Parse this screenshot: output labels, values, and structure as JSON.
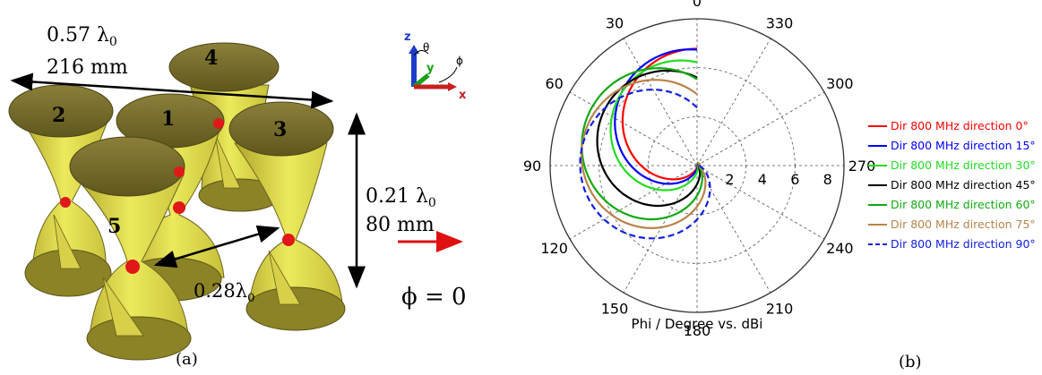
{
  "panel_a": {
    "dim_width_a": "0.57 λ",
    "dim_width_sub": "0",
    "dim_width_b": "216 mm",
    "dim_height_a": "0.21 λ",
    "dim_height_sub": "0",
    "dim_height_b": "80 mm",
    "dim_spacing": "0.28λ",
    "dim_spacing_sub": "0",
    "phi_label": "ϕ = 0",
    "caption": "(a)",
    "element_numbers": [
      "1",
      "2",
      "3",
      "4",
      "5"
    ],
    "axes": {
      "z": "z",
      "theta": "θ",
      "y": "y",
      "phi": "ϕ",
      "x": "x"
    }
  },
  "panel_b": {
    "caption": "(b)",
    "xlabel": "Phi / Degree vs. dBi",
    "angle_labels": [
      "0",
      "30",
      "60",
      "90",
      "120",
      "150",
      "180",
      "210",
      "240",
      "270",
      "300",
      "330"
    ],
    "radial_labels": [
      "2",
      "4",
      "6",
      "8"
    ]
  },
  "chart_data": {
    "type": "polar",
    "title": "",
    "xlabel": "Phi / Degree vs. dBi",
    "angular_axis": {
      "unit": "degree",
      "ticks": [
        0,
        30,
        60,
        90,
        120,
        150,
        180,
        210,
        240,
        270,
        300,
        330
      ],
      "direction": "counterclockwise",
      "zero": "top"
    },
    "radial_axis": {
      "unit": "dBi",
      "ticks": [
        2,
        4,
        6,
        8
      ],
      "range": [
        0,
        9
      ]
    },
    "grid": true,
    "legend": "right",
    "series": [
      {
        "name": "Dir 800 MHz direction 0°",
        "color": "#ff0000",
        "dash": false,
        "peak_angle": 0,
        "peak_dBi": 7.0
      },
      {
        "name": "Dir 800 MHz direction 15°",
        "color": "#0000ff",
        "dash": false,
        "peak_angle": 10,
        "peak_dBi": 7.0
      },
      {
        "name": "Dir 800 MHz direction 30°",
        "color": "#22dd22",
        "dash": false,
        "peak_angle": 25,
        "peak_dBi": 6.5
      },
      {
        "name": "Dir 800 MHz direction 45°",
        "color": "#000000",
        "dash": false,
        "peak_angle": 50,
        "peak_dBi": 6.5
      },
      {
        "name": "Dir 800 MHz direction 60°",
        "color": "#11aa11",
        "dash": false,
        "peak_angle": 62,
        "peak_dBi": 7.2
      },
      {
        "name": "Dir 800 MHz direction 75°",
        "color": "#b8844a",
        "dash": false,
        "peak_angle": 75,
        "peak_dBi": 7.0
      },
      {
        "name": "Dir 800 MHz direction 90°",
        "color": "#1020e0",
        "dash": true,
        "peak_angle": 88,
        "peak_dBi": 7.0
      }
    ]
  }
}
